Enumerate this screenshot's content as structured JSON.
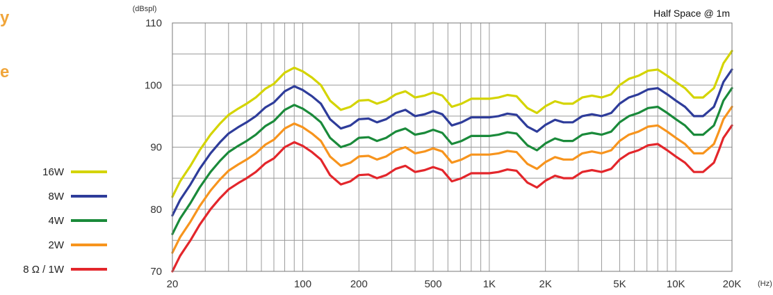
{
  "side_text": [
    "y",
    "e"
  ],
  "chart_data": {
    "type": "line",
    "title": "",
    "ylabel": "(dBspl)",
    "xlabel": "(Hz)",
    "annotation": "Half Space @ 1m",
    "xscale": "log",
    "xlim": [
      20,
      20000
    ],
    "ylim": [
      70,
      110
    ],
    "grid": true,
    "legend_position": "left",
    "x_ticks": [
      {
        "value": 20,
        "label": "20"
      },
      {
        "value": 100,
        "label": "100"
      },
      {
        "value": 200,
        "label": "200"
      },
      {
        "value": 500,
        "label": "500"
      },
      {
        "value": 1000,
        "label": "1K"
      },
      {
        "value": 2000,
        "label": "2K"
      },
      {
        "value": 5000,
        "label": "5K"
      },
      {
        "value": 10000,
        "label": "10K"
      },
      {
        "value": 20000,
        "label": "20K"
      }
    ],
    "y_ticks": [
      70,
      80,
      90,
      100,
      110
    ],
    "x": [
      20,
      22,
      25,
      28,
      32,
      36,
      40,
      45,
      50,
      56,
      63,
      70,
      80,
      90,
      100,
      112,
      125,
      140,
      160,
      180,
      200,
      225,
      250,
      280,
      315,
      355,
      400,
      450,
      500,
      560,
      630,
      710,
      800,
      900,
      1000,
      1120,
      1250,
      1400,
      1600,
      1800,
      2000,
      2250,
      2500,
      2800,
      3150,
      3550,
      4000,
      4500,
      5000,
      5600,
      6300,
      7100,
      8000,
      9000,
      10000,
      11200,
      12500,
      14000,
      16000,
      17000,
      18000,
      20000
    ],
    "series": [
      {
        "name": "16W",
        "color": "#d4d400",
        "values": [
          82,
          84.5,
          87,
          89.5,
          92,
          93.8,
          95.2,
          96.2,
          97,
          98,
          99.4,
          100.2,
          102,
          102.8,
          102.2,
          101.2,
          100,
          97.5,
          96,
          96.5,
          97.5,
          97.6,
          97,
          97.5,
          98.5,
          99,
          98,
          98.3,
          98.8,
          98.3,
          96.5,
          97,
          97.8,
          97.8,
          97.8,
          98,
          98.4,
          98.2,
          96.3,
          95.5,
          96.6,
          97.4,
          97,
          97,
          98,
          98.3,
          98,
          98.5,
          100,
          101,
          101.5,
          102.3,
          102.5,
          101.5,
          100.5,
          99.5,
          98,
          98,
          99.5,
          101.5,
          103.5,
          105.5
        ]
      },
      {
        "name": "8W",
        "color": "#2e3c9a",
        "values": [
          79,
          81.5,
          84,
          86.5,
          89,
          90.8,
          92.2,
          93.2,
          94,
          95,
          96.4,
          97.2,
          99,
          99.8,
          99.2,
          98.2,
          97,
          94.5,
          93,
          93.5,
          94.5,
          94.6,
          94,
          94.5,
          95.5,
          96,
          95,
          95.3,
          95.8,
          95.3,
          93.5,
          94,
          94.8,
          94.8,
          94.8,
          95,
          95.4,
          95.2,
          93.3,
          92.5,
          93.6,
          94.4,
          94,
          94,
          95,
          95.3,
          95,
          95.5,
          97,
          98,
          98.5,
          99.3,
          99.5,
          98.5,
          97.5,
          96.5,
          95,
          95,
          96.5,
          98.5,
          100.5,
          102.5
        ]
      },
      {
        "name": "4W",
        "color": "#1a8a3a",
        "values": [
          76,
          78.5,
          81,
          83.5,
          86,
          87.8,
          89.2,
          90.2,
          91,
          92,
          93.4,
          94.2,
          96,
          96.8,
          96.2,
          95.2,
          94,
          91.5,
          90,
          90.5,
          91.5,
          91.6,
          91,
          91.5,
          92.5,
          93,
          92,
          92.3,
          92.8,
          92.3,
          90.5,
          91,
          91.8,
          91.8,
          91.8,
          92,
          92.4,
          92.2,
          90.3,
          89.5,
          90.6,
          91.4,
          91,
          91,
          92,
          92.3,
          92,
          92.5,
          94,
          95,
          95.5,
          96.3,
          96.5,
          95.5,
          94.5,
          93.5,
          92,
          92,
          93.5,
          95.5,
          97.5,
          99.5
        ]
      },
      {
        "name": "2W",
        "color": "#f7941d",
        "values": [
          73,
          75.5,
          78,
          80.5,
          83,
          84.8,
          86.2,
          87.2,
          88,
          89,
          90.4,
          91.2,
          93,
          93.8,
          93.2,
          92.2,
          91,
          88.5,
          87,
          87.5,
          88.5,
          88.6,
          88,
          88.5,
          89.5,
          90,
          89,
          89.3,
          89.8,
          89.3,
          87.5,
          88,
          88.8,
          88.8,
          88.8,
          89,
          89.4,
          89.2,
          87.3,
          86.5,
          87.6,
          88.4,
          88,
          88,
          89,
          89.3,
          89,
          89.5,
          91,
          92,
          92.5,
          93.3,
          93.5,
          92.5,
          91.5,
          90.5,
          89,
          89,
          90.5,
          92.5,
          94.5,
          96.5
        ]
      },
      {
        "name": "8 Ω / 1W",
        "color": "#e3262b",
        "values": [
          70,
          72.5,
          75,
          77.5,
          80,
          81.8,
          83.2,
          84.2,
          85,
          86,
          87.4,
          88.2,
          90,
          90.8,
          90.2,
          89.2,
          88,
          85.5,
          84,
          84.5,
          85.5,
          85.6,
          85,
          85.5,
          86.5,
          87,
          86,
          86.3,
          86.8,
          86.3,
          84.5,
          85,
          85.8,
          85.8,
          85.8,
          86,
          86.4,
          86.2,
          84.3,
          83.5,
          84.6,
          85.4,
          85,
          85,
          86,
          86.3,
          86,
          86.5,
          88,
          89,
          89.5,
          90.3,
          90.5,
          89.5,
          88.5,
          87.5,
          86,
          86,
          87.5,
          89.5,
          91.5,
          93.5
        ]
      }
    ]
  }
}
